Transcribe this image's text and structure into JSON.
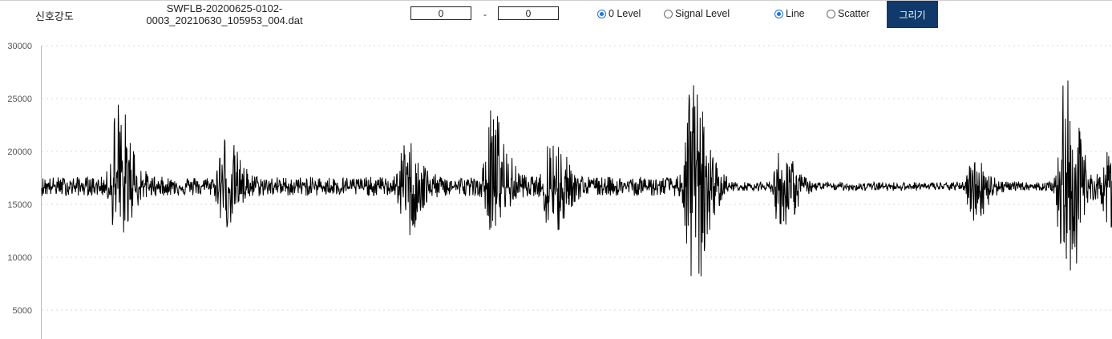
{
  "toolbar": {
    "signal_label": "신호강도",
    "filename_line1": "SWFLB-20200625-0102-",
    "filename_line2": "0003_20210630_105953_004.dat",
    "range_start": "0",
    "range_separator": "-",
    "range_end": "0",
    "level_options": [
      {
        "label": "0 Level",
        "selected": true
      },
      {
        "label": "Signal Level",
        "selected": false
      }
    ],
    "plot_options": [
      {
        "label": "Line",
        "selected": true
      },
      {
        "label": "Scatter",
        "selected": false
      }
    ],
    "draw_button": "그리기"
  },
  "colors": {
    "button_bg": "#0f3a6b",
    "line": "#000000",
    "radio_accent": "#1a73e8"
  },
  "chart_data": {
    "type": "line",
    "title": "",
    "xlabel": "",
    "ylabel": "",
    "ylim": [
      3500,
      30000
    ],
    "yticks": [
      "30000",
      "25000",
      "20000",
      "15000",
      "10000",
      "5000"
    ],
    "grid": "horizontal dotted",
    "baseline": 16700,
    "noise_amplitude": 900,
    "bursts": [
      {
        "x": 0.07,
        "peak": 24600,
        "trough": 12200
      },
      {
        "x": 0.17,
        "peak": 21100,
        "trough": 13400
      },
      {
        "x": 0.34,
        "peak": 20600,
        "trough": 12400
      },
      {
        "x": 0.42,
        "peak": 23600,
        "trough": 13300
      },
      {
        "x": 0.475,
        "peak": 21300,
        "trough": 11900
      },
      {
        "x": 0.607,
        "peak": 26300,
        "trough": 6000
      },
      {
        "x": 0.69,
        "peak": 20000,
        "trough": 12300
      },
      {
        "x": 0.87,
        "peak": 19200,
        "trough": 13500
      },
      {
        "x": 0.955,
        "peak": 26300,
        "trough": 6200
      },
      {
        "x": 0.997,
        "peak": 19500,
        "trough": 13200
      }
    ]
  }
}
